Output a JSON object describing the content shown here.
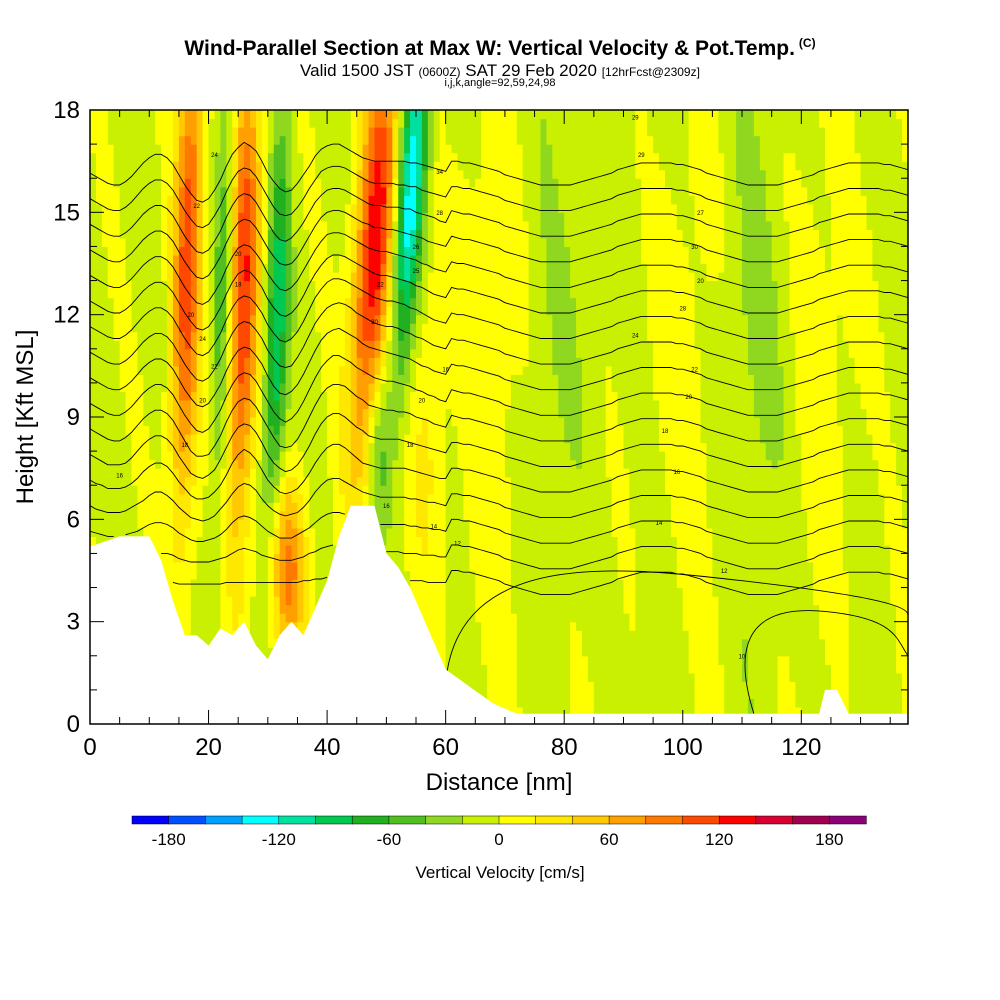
{
  "title": "Wind-Parallel Section at Max W: Vertical Velocity & Pot.Temp.",
  "title_mark": "(C)",
  "subtitle_a": "Valid 1500 JST",
  "subtitle_b": "(0600Z)",
  "subtitle_c": "SAT 29 Feb 2020",
  "subtitle_d": "[12hrFcst@2309z]",
  "subtitle2": "i,j,k,angle=92,59,24,98",
  "chart_data": {
    "type": "heatmap",
    "xlabel": "Distance [nm]",
    "ylabel": "Height [Kft MSL]",
    "xlim": [
      0,
      138
    ],
    "ylim": [
      0,
      18
    ],
    "x_ticks": [
      0,
      20,
      40,
      60,
      80,
      100,
      120
    ],
    "y_ticks": [
      0,
      3,
      6,
      9,
      12,
      15,
      18
    ],
    "colorbar": {
      "label": "Vertical Velocity [cm/s]",
      "range": [
        -200,
        200
      ],
      "step": 20,
      "ticks": [
        -180,
        -120,
        -60,
        0,
        60,
        120,
        180
      ],
      "colors": [
        "#0000ff",
        "#0050ff",
        "#00a0ff",
        "#00ffff",
        "#00e0a0",
        "#00c850",
        "#20b020",
        "#50c020",
        "#90d820",
        "#c8f000",
        "#ffff00",
        "#ffe800",
        "#ffc800",
        "#ffa000",
        "#ff7800",
        "#ff4800",
        "#ff0000",
        "#d80030",
        "#a00050",
        "#8c0078"
      ]
    },
    "terrain_kft": [
      [
        0,
        5.2
      ],
      [
        5,
        5.5
      ],
      [
        10,
        5.5
      ],
      [
        12,
        4.8
      ],
      [
        14,
        3.6
      ],
      [
        16,
        2.6
      ],
      [
        18,
        2.6
      ],
      [
        20,
        2.3
      ],
      [
        22,
        2.8
      ],
      [
        24,
        2.6
      ],
      [
        26,
        3.0
      ],
      [
        28,
        2.3
      ],
      [
        30,
        1.9
      ],
      [
        32,
        2.6
      ],
      [
        34,
        3.0
      ],
      [
        36,
        2.6
      ],
      [
        40,
        4.2
      ],
      [
        42,
        5.5
      ],
      [
        44,
        6.4
      ],
      [
        46,
        6.4
      ],
      [
        48,
        6.4
      ],
      [
        50,
        5.0
      ],
      [
        52,
        4.6
      ],
      [
        54,
        4.0
      ],
      [
        56,
        3.2
      ],
      [
        58,
        2.4
      ],
      [
        60,
        1.6
      ],
      [
        64,
        1.1
      ],
      [
        68,
        0.6
      ],
      [
        72,
        0.3
      ],
      [
        80,
        0.3
      ],
      [
        100,
        0.3
      ],
      [
        110,
        0.3
      ],
      [
        115,
        0.3
      ],
      [
        123,
        0.3
      ],
      [
        124,
        1.0
      ],
      [
        126,
        1.0
      ],
      [
        128,
        0.3
      ],
      [
        138,
        0.3
      ]
    ],
    "isentrope_labels": [
      {
        "x": 92,
        "y": 17.8,
        "text": "29"
      },
      {
        "x": 93,
        "y": 16.7,
        "text": "29"
      },
      {
        "x": 103,
        "y": 15.0,
        "text": "27"
      },
      {
        "x": 102,
        "y": 14.0,
        "text": "30"
      },
      {
        "x": 103,
        "y": 13.0,
        "text": "20"
      },
      {
        "x": 100,
        "y": 12.2,
        "text": "28"
      },
      {
        "x": 92,
        "y": 11.4,
        "text": "24"
      },
      {
        "x": 102,
        "y": 10.4,
        "text": "22"
      },
      {
        "x": 101,
        "y": 9.6,
        "text": "20"
      },
      {
        "x": 97,
        "y": 8.6,
        "text": "18"
      },
      {
        "x": 99,
        "y": 7.4,
        "text": "16"
      },
      {
        "x": 96,
        "y": 5.9,
        "text": "14"
      },
      {
        "x": 107,
        "y": 4.5,
        "text": "12"
      },
      {
        "x": 110,
        "y": 2.0,
        "text": "10"
      },
      {
        "x": 21,
        "y": 16.7,
        "text": "24"
      },
      {
        "x": 18,
        "y": 15.2,
        "text": "22"
      },
      {
        "x": 25,
        "y": 13.8,
        "text": "20"
      },
      {
        "x": 25,
        "y": 12.9,
        "text": "18"
      },
      {
        "x": 17,
        "y": 12.0,
        "text": "20"
      },
      {
        "x": 19,
        "y": 11.3,
        "text": "24"
      },
      {
        "x": 21,
        "y": 10.5,
        "text": "22"
      },
      {
        "x": 19,
        "y": 9.5,
        "text": "20"
      },
      {
        "x": 16,
        "y": 8.2,
        "text": "18"
      },
      {
        "x": 5,
        "y": 7.3,
        "text": "16"
      },
      {
        "x": 59,
        "y": 16.2,
        "text": "34"
      },
      {
        "x": 59,
        "y": 15.0,
        "text": "28"
      },
      {
        "x": 55,
        "y": 14.0,
        "text": "26"
      },
      {
        "x": 55,
        "y": 13.3,
        "text": "25"
      },
      {
        "x": 49,
        "y": 12.9,
        "text": "22"
      },
      {
        "x": 48,
        "y": 11.8,
        "text": "20"
      },
      {
        "x": 60,
        "y": 10.4,
        "text": "16"
      },
      {
        "x": 56,
        "y": 9.5,
        "text": "20"
      },
      {
        "x": 54,
        "y": 8.2,
        "text": "18"
      },
      {
        "x": 50,
        "y": 6.4,
        "text": "16"
      },
      {
        "x": 58,
        "y": 5.8,
        "text": "14"
      },
      {
        "x": 62,
        "y": 5.3,
        "text": "12"
      }
    ]
  }
}
